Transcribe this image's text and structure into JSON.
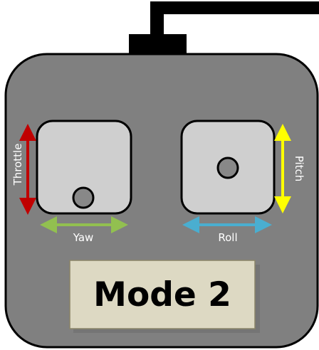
{
  "labels": {
    "throttle": "Throttle",
    "yaw": "Yaw",
    "roll": "Roll",
    "pitch": "Pitch",
    "mode": "Mode 2"
  },
  "colors": {
    "body": "#808080",
    "outline": "#000000",
    "antenna": "#000000",
    "stick_pad": "#cfcfcf",
    "stick_knob": "#888888",
    "throttle_arrow": "#c00000",
    "yaw_arrow": "#92c050",
    "roll_arrow": "#4aaed0",
    "pitch_arrow": "#ffff00",
    "mode_plate": "#ddd9c3"
  },
  "sticks": {
    "left_knob_position": "bottom-center",
    "right_knob_position": "center"
  }
}
